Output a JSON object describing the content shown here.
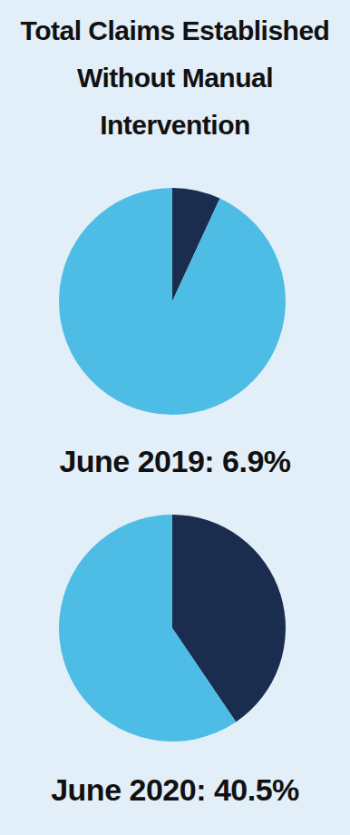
{
  "title": "Total Claims Established Without Manual Intervention",
  "chart_data": [
    {
      "type": "pie",
      "subtitle": "June 2019: 6.9%",
      "values": [
        6.9,
        93.1
      ],
      "colors": [
        "#1b2d4f",
        "#4dbde6"
      ]
    },
    {
      "type": "pie",
      "subtitle": "June 2020: 40.5%",
      "values": [
        40.5,
        59.5
      ],
      "colors": [
        "#1b2d4f",
        "#4dbde6"
      ]
    }
  ]
}
